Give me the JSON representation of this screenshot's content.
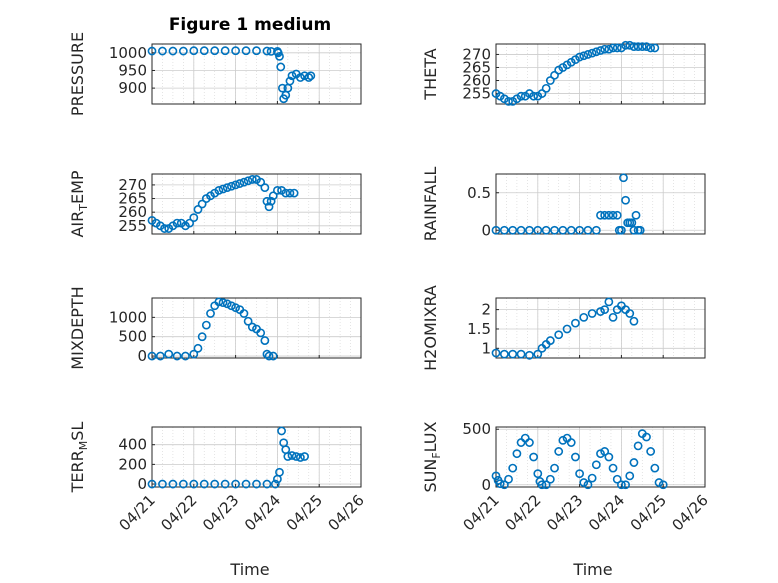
{
  "figure_title": "Figure 1 medium",
  "x_time_label": "Time",
  "x_ticks": [
    "04/21",
    "04/22",
    "04/23",
    "04/24",
    "04/25",
    "04/26"
  ],
  "marker_color": "#0072BD",
  "chart_data": [
    {
      "type": "scatter",
      "id": "pressure",
      "ylabel": "PRESSURE",
      "ylim": [
        855,
        1025
      ],
      "yticks": [
        900,
        950,
        1000
      ],
      "grid": true,
      "points": [
        [
          0,
          1005
        ],
        [
          0.25,
          1005
        ],
        [
          0.5,
          1005
        ],
        [
          0.75,
          1005
        ],
        [
          1,
          1006
        ],
        [
          1.25,
          1006
        ],
        [
          1.5,
          1006
        ],
        [
          1.75,
          1006
        ],
        [
          2,
          1006
        ],
        [
          2.25,
          1006
        ],
        [
          2.5,
          1006
        ],
        [
          2.75,
          1005
        ],
        [
          2.85,
          1004
        ],
        [
          3,
          1004
        ],
        [
          3.02,
          1000
        ],
        [
          3.05,
          990
        ],
        [
          3.08,
          960
        ],
        [
          3.12,
          900
        ],
        [
          3.15,
          870
        ],
        [
          3.2,
          880
        ],
        [
          3.25,
          900
        ],
        [
          3.3,
          920
        ],
        [
          3.35,
          935
        ],
        [
          3.45,
          940
        ],
        [
          3.55,
          930
        ],
        [
          3.65,
          935
        ],
        [
          3.75,
          930
        ],
        [
          3.8,
          935
        ]
      ]
    },
    {
      "type": "scatter",
      "id": "theta",
      "ylabel": "THETA",
      "ylim": [
        251,
        274
      ],
      "yticks": [
        255,
        260,
        265,
        270
      ],
      "grid": true,
      "points": [
        [
          0,
          255
        ],
        [
          0.1,
          254
        ],
        [
          0.2,
          253
        ],
        [
          0.3,
          252
        ],
        [
          0.4,
          252
        ],
        [
          0.5,
          253
        ],
        [
          0.6,
          254
        ],
        [
          0.7,
          254
        ],
        [
          0.8,
          255
        ],
        [
          0.9,
          254
        ],
        [
          1,
          254
        ],
        [
          1.1,
          255
        ],
        [
          1.2,
          257
        ],
        [
          1.3,
          260
        ],
        [
          1.4,
          262
        ],
        [
          1.5,
          264
        ],
        [
          1.6,
          265
        ],
        [
          1.7,
          266
        ],
        [
          1.8,
          267
        ],
        [
          1.9,
          268
        ],
        [
          2,
          269
        ],
        [
          2.1,
          269.5
        ],
        [
          2.2,
          270
        ],
        [
          2.3,
          270.5
        ],
        [
          2.4,
          271
        ],
        [
          2.5,
          271.5
        ],
        [
          2.6,
          272
        ],
        [
          2.7,
          272
        ],
        [
          2.8,
          272.5
        ],
        [
          2.9,
          272.5
        ],
        [
          3,
          272.5
        ],
        [
          3.1,
          273.5
        ],
        [
          3.2,
          273.5
        ],
        [
          3.3,
          273
        ],
        [
          3.4,
          273
        ],
        [
          3.5,
          273
        ],
        [
          3.6,
          273
        ],
        [
          3.7,
          272.5
        ],
        [
          3.8,
          272.5
        ]
      ]
    },
    {
      "type": "scatter",
      "id": "air-temp",
      "ylabel": "AIR_TEMP",
      "ylim": [
        252,
        274
      ],
      "yticks": [
        255,
        260,
        265,
        270
      ],
      "grid": true,
      "points": [
        [
          0,
          257
        ],
        [
          0.1,
          256
        ],
        [
          0.2,
          255
        ],
        [
          0.3,
          254
        ],
        [
          0.4,
          254
        ],
        [
          0.5,
          255
        ],
        [
          0.6,
          256
        ],
        [
          0.7,
          256
        ],
        [
          0.8,
          255
        ],
        [
          0.9,
          256
        ],
        [
          1,
          258
        ],
        [
          1.1,
          261
        ],
        [
          1.2,
          263
        ],
        [
          1.3,
          265
        ],
        [
          1.4,
          266
        ],
        [
          1.5,
          267
        ],
        [
          1.6,
          268
        ],
        [
          1.7,
          268.5
        ],
        [
          1.8,
          269
        ],
        [
          1.9,
          269.5
        ],
        [
          2,
          270
        ],
        [
          2.1,
          270.5
        ],
        [
          2.2,
          271
        ],
        [
          2.3,
          271.5
        ],
        [
          2.4,
          272
        ],
        [
          2.5,
          272
        ],
        [
          2.6,
          271
        ],
        [
          2.7,
          269
        ],
        [
          2.75,
          264
        ],
        [
          2.8,
          262
        ],
        [
          2.85,
          264
        ],
        [
          2.9,
          266
        ],
        [
          3,
          268
        ],
        [
          3.1,
          268
        ],
        [
          3.2,
          267
        ],
        [
          3.3,
          267
        ],
        [
          3.4,
          267
        ]
      ]
    },
    {
      "type": "scatter",
      "id": "rainfall",
      "ylabel": "RAINFALL",
      "ylim": [
        -0.05,
        0.75
      ],
      "yticks": [
        0,
        0.5
      ],
      "grid": true,
      "points": [
        [
          0,
          0
        ],
        [
          0.2,
          0
        ],
        [
          0.4,
          0
        ],
        [
          0.6,
          0
        ],
        [
          0.8,
          0
        ],
        [
          1,
          0
        ],
        [
          1.2,
          0
        ],
        [
          1.4,
          0
        ],
        [
          1.6,
          0
        ],
        [
          1.8,
          0
        ],
        [
          2,
          0
        ],
        [
          2.2,
          0
        ],
        [
          2.4,
          0
        ],
        [
          2.5,
          0.2
        ],
        [
          2.6,
          0.2
        ],
        [
          2.7,
          0.2
        ],
        [
          2.8,
          0.2
        ],
        [
          2.9,
          0.2
        ],
        [
          2.95,
          0
        ],
        [
          3,
          0
        ],
        [
          3.05,
          0.7
        ],
        [
          3.1,
          0.4
        ],
        [
          3.15,
          0.1
        ],
        [
          3.2,
          0.1
        ],
        [
          3.25,
          0.1
        ],
        [
          3.3,
          0
        ],
        [
          3.35,
          0.2
        ],
        [
          3.4,
          0
        ],
        [
          3.45,
          0
        ]
      ]
    },
    {
      "type": "scatter",
      "id": "mixdepth",
      "ylabel": "MIXDEPTH",
      "ylim": [
        -50,
        1500
      ],
      "yticks": [
        0,
        500,
        1000
      ],
      "grid": true,
      "points": [
        [
          0,
          0
        ],
        [
          0.2,
          0
        ],
        [
          0.4,
          50
        ],
        [
          0.6,
          0
        ],
        [
          0.8,
          0
        ],
        [
          1,
          50
        ],
        [
          1.1,
          200
        ],
        [
          1.2,
          500
        ],
        [
          1.3,
          800
        ],
        [
          1.4,
          1100
        ],
        [
          1.5,
          1300
        ],
        [
          1.6,
          1400
        ],
        [
          1.7,
          1380
        ],
        [
          1.8,
          1350
        ],
        [
          1.9,
          1300
        ],
        [
          2,
          1250
        ],
        [
          2.1,
          1200
        ],
        [
          2.2,
          1100
        ],
        [
          2.3,
          900
        ],
        [
          2.4,
          750
        ],
        [
          2.5,
          700
        ],
        [
          2.6,
          600
        ],
        [
          2.7,
          400
        ],
        [
          2.75,
          50
        ],
        [
          2.8,
          0
        ],
        [
          2.9,
          0
        ]
      ]
    },
    {
      "type": "scatter",
      "id": "h2omixra",
      "ylabel": "H2OMIXRA",
      "ylim": [
        0.75,
        2.3
      ],
      "yticks": [
        1,
        1.5,
        2
      ],
      "grid": true,
      "points": [
        [
          0,
          0.88
        ],
        [
          0.2,
          0.85
        ],
        [
          0.4,
          0.85
        ],
        [
          0.6,
          0.85
        ],
        [
          0.8,
          0.82
        ],
        [
          1,
          0.85
        ],
        [
          1.1,
          1.0
        ],
        [
          1.2,
          1.1
        ],
        [
          1.3,
          1.2
        ],
        [
          1.5,
          1.35
        ],
        [
          1.7,
          1.5
        ],
        [
          1.9,
          1.65
        ],
        [
          2.1,
          1.8
        ],
        [
          2.3,
          1.9
        ],
        [
          2.5,
          1.95
        ],
        [
          2.6,
          2.0
        ],
        [
          2.7,
          2.2
        ],
        [
          2.8,
          1.8
        ],
        [
          2.9,
          2.0
        ],
        [
          3,
          2.1
        ],
        [
          3.1,
          2.0
        ],
        [
          3.2,
          1.9
        ],
        [
          3.3,
          1.7
        ]
      ]
    },
    {
      "type": "scatter",
      "id": "terr-msl",
      "ylabel": "TERR_MSL",
      "ylim": [
        -30,
        580
      ],
      "yticks": [
        0,
        200,
        400
      ],
      "grid": true,
      "points": [
        [
          0,
          0
        ],
        [
          0.25,
          0
        ],
        [
          0.5,
          0
        ],
        [
          0.75,
          0
        ],
        [
          1,
          0
        ],
        [
          1.25,
          0
        ],
        [
          1.5,
          0
        ],
        [
          1.75,
          0
        ],
        [
          2,
          0
        ],
        [
          2.25,
          0
        ],
        [
          2.5,
          0
        ],
        [
          2.75,
          0
        ],
        [
          2.95,
          0
        ],
        [
          3,
          50
        ],
        [
          3.05,
          120
        ],
        [
          3.1,
          540
        ],
        [
          3.15,
          420
        ],
        [
          3.2,
          350
        ],
        [
          3.25,
          280
        ],
        [
          3.35,
          290
        ],
        [
          3.45,
          280
        ],
        [
          3.55,
          270
        ],
        [
          3.65,
          280
        ]
      ]
    },
    {
      "type": "scatter",
      "id": "sun-flux",
      "ylabel": "SUN_FLUX",
      "ylim": [
        -20,
        520
      ],
      "yticks": [
        0,
        500
      ],
      "grid": true,
      "points": [
        [
          0,
          80
        ],
        [
          0.05,
          40
        ],
        [
          0.1,
          10
        ],
        [
          0.2,
          0
        ],
        [
          0.3,
          50
        ],
        [
          0.4,
          150
        ],
        [
          0.5,
          280
        ],
        [
          0.6,
          380
        ],
        [
          0.7,
          420
        ],
        [
          0.8,
          380
        ],
        [
          0.9,
          250
        ],
        [
          1,
          100
        ],
        [
          1.05,
          30
        ],
        [
          1.1,
          0
        ],
        [
          1.2,
          0
        ],
        [
          1.3,
          50
        ],
        [
          1.4,
          150
        ],
        [
          1.5,
          300
        ],
        [
          1.6,
          400
        ],
        [
          1.7,
          420
        ],
        [
          1.8,
          380
        ],
        [
          1.9,
          250
        ],
        [
          2,
          100
        ],
        [
          2.1,
          20
        ],
        [
          2.2,
          0
        ],
        [
          2.3,
          60
        ],
        [
          2.4,
          180
        ],
        [
          2.5,
          280
        ],
        [
          2.6,
          300
        ],
        [
          2.7,
          250
        ],
        [
          2.8,
          150
        ],
        [
          2.9,
          50
        ],
        [
          3,
          0
        ],
        [
          3.1,
          0
        ],
        [
          3.2,
          80
        ],
        [
          3.3,
          200
        ],
        [
          3.4,
          350
        ],
        [
          3.5,
          460
        ],
        [
          3.6,
          430
        ],
        [
          3.7,
          300
        ],
        [
          3.8,
          150
        ],
        [
          3.9,
          20
        ],
        [
          4,
          0
        ]
      ]
    }
  ]
}
